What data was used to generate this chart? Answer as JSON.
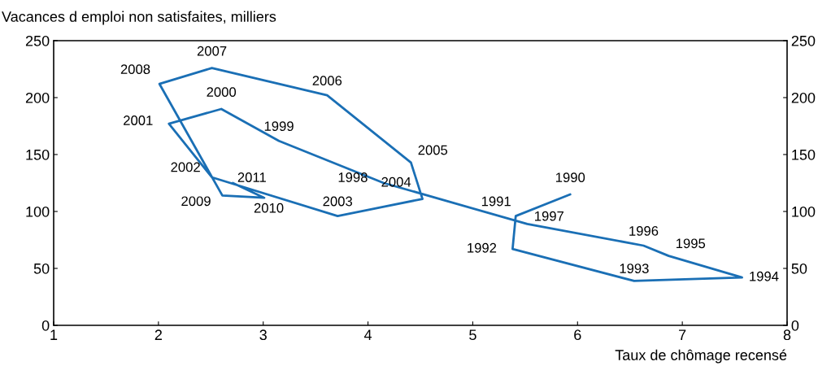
{
  "chart_data": {
    "type": "line",
    "ylabel": "Vacances d emploi non satisfaites, milliers",
    "xlabel": "Taux de chômage recensé",
    "x": [
      5.93,
      5.41,
      5.38,
      6.54,
      7.57,
      6.87,
      6.63,
      5.52,
      4.15,
      3.15,
      2.6,
      2.1,
      2.51,
      3.71,
      4.52,
      4.41,
      3.61,
      2.51,
      2.01,
      2.61,
      3.01,
      2.71
    ],
    "values": [
      115,
      96,
      67,
      39,
      42,
      61,
      70,
      89,
      125,
      162,
      190,
      177,
      130,
      96,
      111,
      143,
      202,
      226,
      212,
      114,
      112,
      125
    ],
    "annotations": [
      {
        "text": "1990",
        "x": 5.93,
        "y": 115
      },
      {
        "text": "1991",
        "x": 5.41,
        "y": 96
      },
      {
        "text": "1992",
        "x": 5.38,
        "y": 67
      },
      {
        "text": "1993",
        "x": 6.54,
        "y": 39
      },
      {
        "text": "1994",
        "x": 7.57,
        "y": 42
      },
      {
        "text": "1995",
        "x": 6.87,
        "y": 61
      },
      {
        "text": "1996",
        "x": 6.63,
        "y": 70
      },
      {
        "text": "1997",
        "x": 5.52,
        "y": 89
      },
      {
        "text": "1998",
        "x": 4.15,
        "y": 125
      },
      {
        "text": "1999",
        "x": 3.15,
        "y": 162
      },
      {
        "text": "2000",
        "x": 2.6,
        "y": 190
      },
      {
        "text": "2001",
        "x": 2.1,
        "y": 177
      },
      {
        "text": "2002",
        "x": 2.51,
        "y": 130
      },
      {
        "text": "2003",
        "x": 3.71,
        "y": 96
      },
      {
        "text": "2004",
        "x": 4.52,
        "y": 111
      },
      {
        "text": "2005",
        "x": 4.41,
        "y": 143
      },
      {
        "text": "2006",
        "x": 3.61,
        "y": 202
      },
      {
        "text": "2007",
        "x": 2.51,
        "y": 226
      },
      {
        "text": "2008",
        "x": 2.01,
        "y": 212
      },
      {
        "text": "2009",
        "x": 2.61,
        "y": 114
      },
      {
        "text": "2010",
        "x": 3.01,
        "y": 112
      },
      {
        "text": "2011",
        "x": 2.71,
        "y": 125
      }
    ],
    "color": "#1a6fb5",
    "xlim": [
      1,
      8
    ],
    "xticks": [
      1,
      2,
      3,
      4,
      5,
      6,
      7,
      8
    ],
    "ylim": [
      0,
      250
    ],
    "yticks": [
      0,
      50,
      100,
      150,
      200,
      250
    ],
    "y2lim": [
      0,
      250
    ],
    "y2ticks": [
      0,
      50,
      100,
      150,
      200,
      250
    ],
    "grid": false,
    "legend": false
  }
}
